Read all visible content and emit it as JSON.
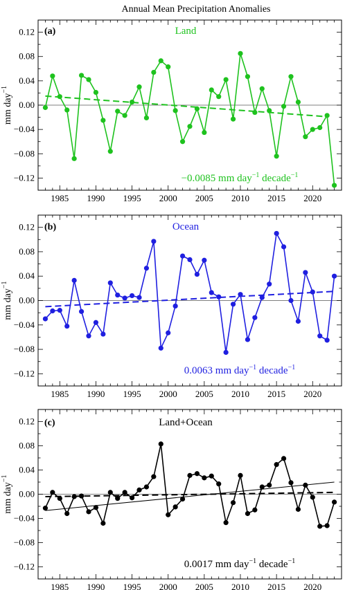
{
  "title": "Annual Mean Precipitation Anomalies",
  "chart_data": [
    {
      "type": "line",
      "panel_label": "(a)",
      "series_label": "Land",
      "ylabel": "mm day",
      "ylabel_sup": "−1",
      "trend_text": "−0.0085  mm day",
      "trend_sup1": "−1",
      "trend_mid": "  decade",
      "trend_sup2": "−1",
      "color": "#1ec21e",
      "xlim": [
        1982,
        2024
      ],
      "ylim": [
        -0.14,
        0.14
      ],
      "xticks": [
        1985,
        1990,
        1995,
        2000,
        2005,
        2010,
        2015,
        2020
      ],
      "yticks": [
        -0.12,
        -0.08,
        -0.04,
        0.0,
        0.04,
        0.08,
        0.12
      ],
      "ytick_labels": [
        "−0.12",
        "−0.08",
        "−0.04",
        "0.00",
        "0.04",
        "0.08",
        "0.12"
      ],
      "x": [
        1983,
        1984,
        1985,
        1986,
        1987,
        1988,
        1989,
        1990,
        1991,
        1992,
        1993,
        1994,
        1995,
        1996,
        1997,
        1998,
        1999,
        2000,
        2001,
        2002,
        2003,
        2004,
        2005,
        2006,
        2007,
        2008,
        2009,
        2010,
        2011,
        2012,
        2013,
        2014,
        2015,
        2016,
        2017,
        2018,
        2019,
        2020,
        2021,
        2022,
        2023
      ],
      "values": [
        -0.004,
        0.048,
        0.014,
        -0.008,
        -0.088,
        0.049,
        0.042,
        0.021,
        -0.025,
        -0.076,
        -0.01,
        -0.017,
        0.005,
        0.03,
        -0.021,
        0.054,
        0.073,
        0.063,
        -0.009,
        -0.06,
        -0.035,
        -0.006,
        -0.045,
        0.025,
        0.014,
        0.042,
        -0.023,
        0.085,
        0.047,
        -0.012,
        0.027,
        -0.009,
        -0.084,
        -0.002,
        0.047,
        0.005,
        -0.052,
        -0.04,
        -0.037,
        -0.017,
        -0.132
      ],
      "trend_line": [
        [
          1983,
          0.015
        ],
        [
          2022,
          -0.019
        ]
      ],
      "trend_style": "dashed"
    },
    {
      "type": "line",
      "panel_label": "(b)",
      "series_label": "Ocean",
      "ylabel": "mm day",
      "ylabel_sup": "−1",
      "trend_text": "0.0063  mm day",
      "trend_sup1": "−1",
      "trend_mid": "  decade",
      "trend_sup2": "−1",
      "color": "#1f1fe0",
      "xlim": [
        1982,
        2024
      ],
      "ylim": [
        -0.14,
        0.14
      ],
      "xticks": [
        1985,
        1990,
        1995,
        2000,
        2005,
        2010,
        2015,
        2020
      ],
      "yticks": [
        -0.12,
        -0.08,
        -0.04,
        0.0,
        0.04,
        0.08,
        0.12
      ],
      "ytick_labels": [
        "−0.12",
        "−0.08",
        "−0.04",
        "0.00",
        "0.04",
        "0.08",
        "0.12"
      ],
      "x": [
        1983,
        1984,
        1985,
        1986,
        1987,
        1988,
        1989,
        1990,
        1991,
        1992,
        1993,
        1994,
        1995,
        1996,
        1997,
        1998,
        1999,
        2000,
        2001,
        2002,
        2003,
        2004,
        2005,
        2006,
        2007,
        2008,
        2009,
        2010,
        2011,
        2012,
        2013,
        2014,
        2015,
        2016,
        2017,
        2018,
        2019,
        2020,
        2021,
        2022,
        2023
      ],
      "values": [
        -0.03,
        -0.017,
        -0.016,
        -0.042,
        0.033,
        -0.018,
        -0.058,
        -0.036,
        -0.055,
        0.029,
        0.009,
        0.004,
        0.008,
        0.005,
        0.053,
        0.097,
        -0.078,
        -0.053,
        -0.009,
        0.073,
        0.067,
        0.043,
        0.066,
        0.013,
        0.006,
        -0.085,
        -0.006,
        0.01,
        -0.064,
        -0.028,
        0.005,
        0.027,
        0.11,
        0.088,
        0.0,
        -0.034,
        0.046,
        0.014,
        -0.058,
        -0.065,
        0.04
      ],
      "trend_line": [
        [
          1983,
          -0.01
        ],
        [
          2023,
          0.015
        ]
      ],
      "trend_style": "dashed"
    },
    {
      "type": "line",
      "panel_label": "(c)",
      "series_label": "Land+Ocean",
      "ylabel": "mm day",
      "ylabel_sup": "−1",
      "trend_text": "0.0017  mm day",
      "trend_sup1": "−1",
      "trend_mid": "  decade",
      "trend_sup2": "−1",
      "color": "#000000",
      "xlim": [
        1982,
        2024
      ],
      "ylim": [
        -0.14,
        0.14
      ],
      "xticks": [
        1985,
        1990,
        1995,
        2000,
        2005,
        2010,
        2015,
        2020
      ],
      "yticks": [
        -0.12,
        -0.08,
        -0.04,
        0.0,
        0.04,
        0.08,
        0.12
      ],
      "ytick_labels": [
        "−0.12",
        "−0.08",
        "−0.04",
        "0.00",
        "0.04",
        "0.08",
        "0.12"
      ],
      "x": [
        1983,
        1984,
        1985,
        1986,
        1987,
        1988,
        1989,
        1990,
        1991,
        1992,
        1993,
        1994,
        1995,
        1996,
        1997,
        1998,
        1999,
        2000,
        2001,
        2002,
        2003,
        2004,
        2005,
        2006,
        2007,
        2008,
        2009,
        2010,
        2011,
        2012,
        2013,
        2014,
        2015,
        2016,
        2017,
        2018,
        2019,
        2020,
        2021,
        2022,
        2023
      ],
      "values": [
        -0.023,
        0.003,
        -0.007,
        -0.032,
        -0.004,
        -0.003,
        -0.029,
        -0.022,
        -0.048,
        0.003,
        -0.007,
        0.003,
        -0.006,
        0.007,
        0.012,
        0.029,
        0.083,
        -0.034,
        -0.021,
        -0.008,
        0.031,
        0.034,
        0.027,
        0.03,
        0.017,
        -0.047,
        -0.014,
        0.031,
        -0.032,
        -0.026,
        0.012,
        0.015,
        0.049,
        0.059,
        0.019,
        -0.025,
        0.015,
        -0.005,
        -0.053,
        -0.052,
        -0.013
      ],
      "trend_line": [
        [
          1983,
          -0.004
        ],
        [
          2023,
          0.003
        ]
      ],
      "trend_style": "dashed",
      "extra_line": [
        [
          1983,
          -0.027
        ],
        [
          2023,
          0.02
        ]
      ],
      "extra_style": "solid"
    }
  ]
}
